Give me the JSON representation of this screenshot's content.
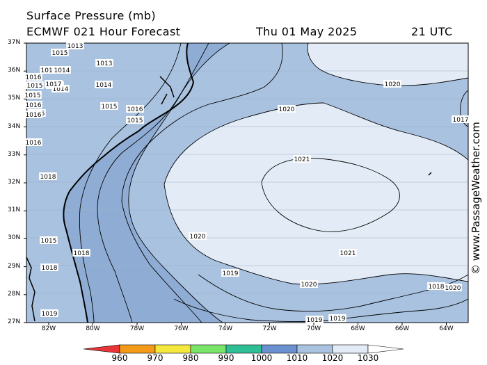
{
  "title": {
    "line1": "Surface Pressure (mb)",
    "line2": "ECMWF 021 Hour Forecast",
    "date": "Thu 01 May 2025",
    "time": "21 UTC"
  },
  "watermark": "© www.PassageWeather.com",
  "map": {
    "lon_range": [
      "83W",
      "63W"
    ],
    "lat_range": [
      "27N",
      "37N"
    ],
    "lat_labels": [
      "37N",
      "36N",
      "35N",
      "34N",
      "33N",
      "32N",
      "31N",
      "30N",
      "29N",
      "28N",
      "27N"
    ],
    "lon_labels": [
      "82W",
      "80W",
      "78W",
      "76W",
      "74W",
      "72W",
      "70W",
      "68W",
      "66W",
      "64W"
    ],
    "colors": {
      "land_background": "#a9c2e0",
      "band_1015": "#8fadd4",
      "band_1020": "#e3ebf6",
      "contour": "#000000",
      "coast": "#000000"
    },
    "isobar_labels": [
      "1013",
      "1013",
      "1015",
      "1016",
      "1014",
      "1016",
      "1015",
      "1015",
      "1014",
      "1015",
      "1016",
      "1017",
      "1015",
      "1014",
      "1015",
      "1016",
      "1016",
      "1015",
      "1016",
      "1018",
      "1015",
      "1018",
      "1018",
      "1019",
      "1019",
      "1019",
      "1019",
      "1018",
      "1020",
      "1020",
      "1020",
      "1020",
      "1020",
      "1021",
      "1021",
      "1017"
    ]
  },
  "colorbar": {
    "ticks": [
      "960",
      "970",
      "980",
      "990",
      "1000",
      "1010",
      "1020",
      "1030"
    ],
    "colors": [
      "#e8353a",
      "#f39a18",
      "#f5e83c",
      "#7ae46a",
      "#2ebf96",
      "#6b90cf",
      "#a9c2e0",
      "#e3ebf6",
      "#ffffff"
    ]
  }
}
